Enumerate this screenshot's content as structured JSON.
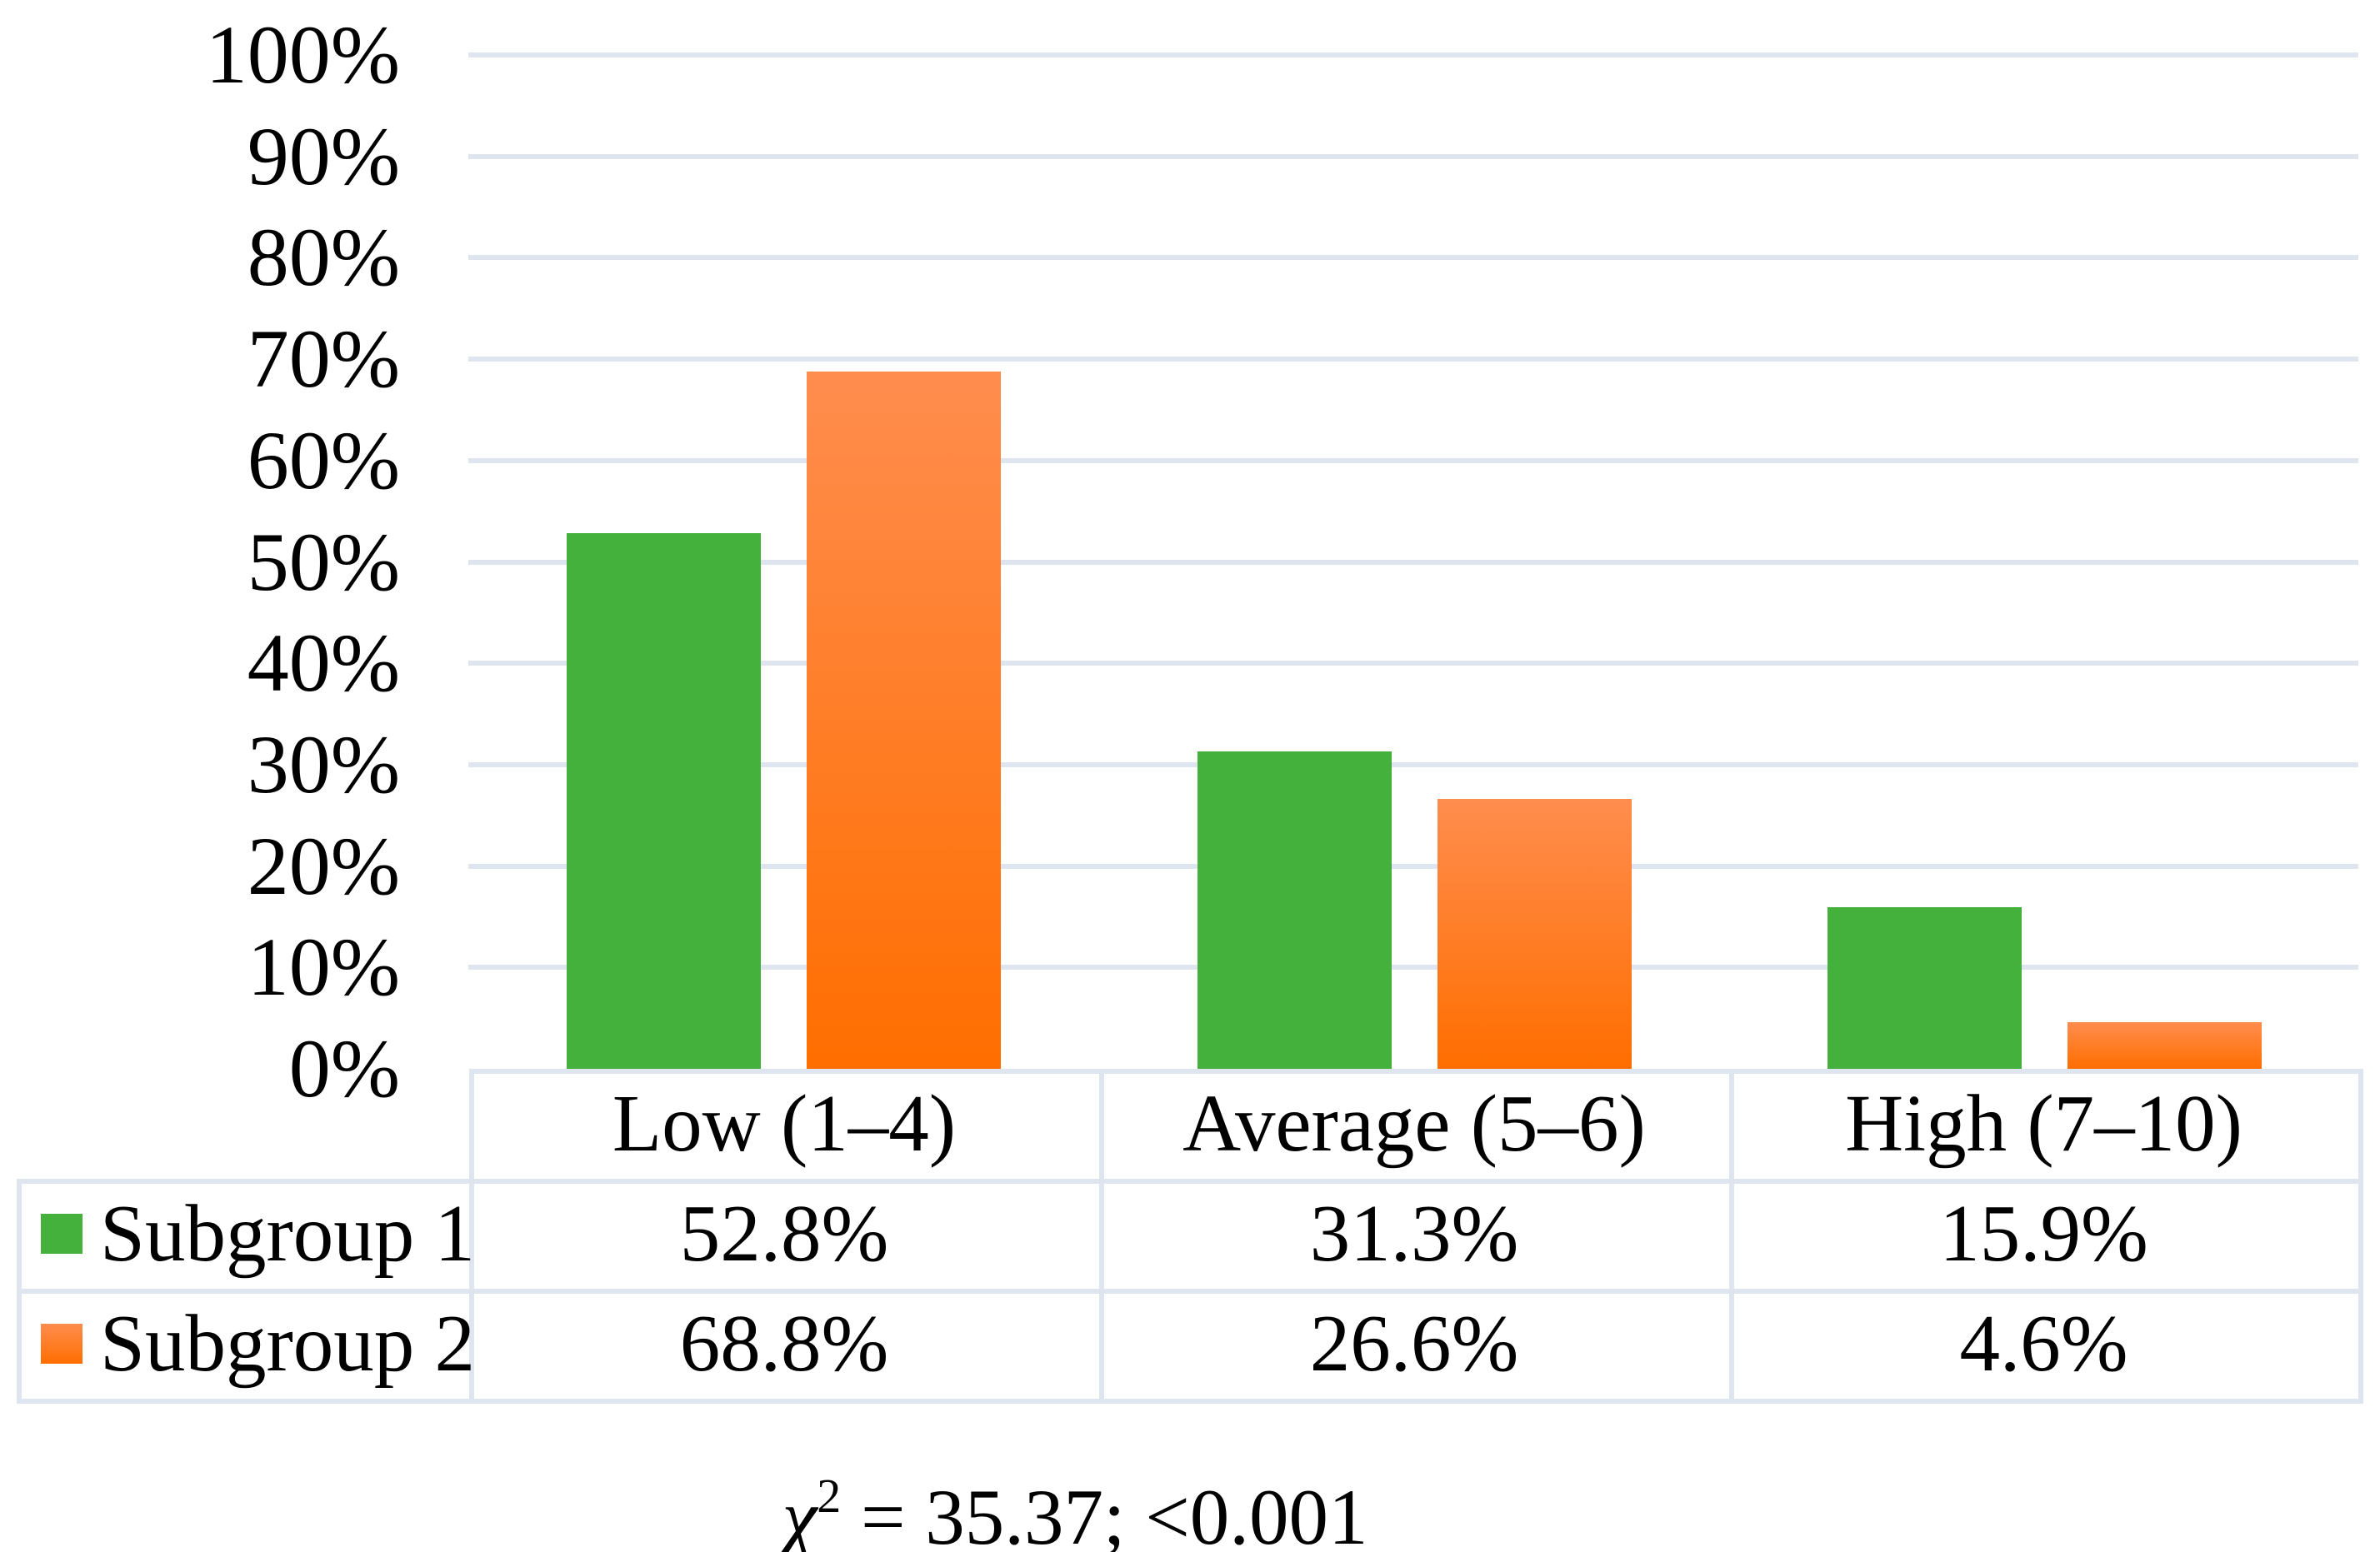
{
  "chart_data": {
    "type": "bar",
    "title": "",
    "xlabel": "",
    "ylabel": "",
    "categories": [
      "Low (1–4)",
      "Average (5–6)",
      "High (7–10)"
    ],
    "series": [
      {
        "name": "Subgroup 1",
        "color": "#43b13c",
        "values": [
          52.8,
          31.3,
          15.9
        ]
      },
      {
        "name": "Subgroup 2",
        "color_top": "#ff8d4e",
        "color_bottom": "#ff6e00",
        "values": [
          68.8,
          26.6,
          4.6
        ]
      }
    ],
    "ylim": [
      0,
      100
    ],
    "ytick_labels": [
      "0%",
      "10%",
      "20%",
      "30%",
      "40%",
      "50%",
      "60%",
      "70%",
      "80%",
      "90%",
      "100%"
    ],
    "grid": "horizontal",
    "legend_position": "data-table-left-column"
  },
  "data_table": {
    "columns": [
      "Low (1–4)",
      "Average (5–6)",
      "High (7–10)"
    ],
    "rows": [
      {
        "label": "Subgroup 1",
        "values": [
          "52.8%",
          "31.3%",
          "15.9%"
        ]
      },
      {
        "label": "Subgroup 2",
        "values": [
          "68.8%",
          "26.6%",
          "4.6%"
        ]
      }
    ]
  },
  "annotation": {
    "chi_symbol": "χ",
    "exponent": "2",
    "rest": " = 35.37; <0.001"
  },
  "colors": {
    "grid_and_border": "#dfe5ee",
    "subgroup1_green": "#43b13c",
    "subgroup2_orange_top": "#ff8d4e",
    "subgroup2_orange_bottom": "#ff6e00",
    "text": "#000000",
    "background": "#ffffff"
  }
}
